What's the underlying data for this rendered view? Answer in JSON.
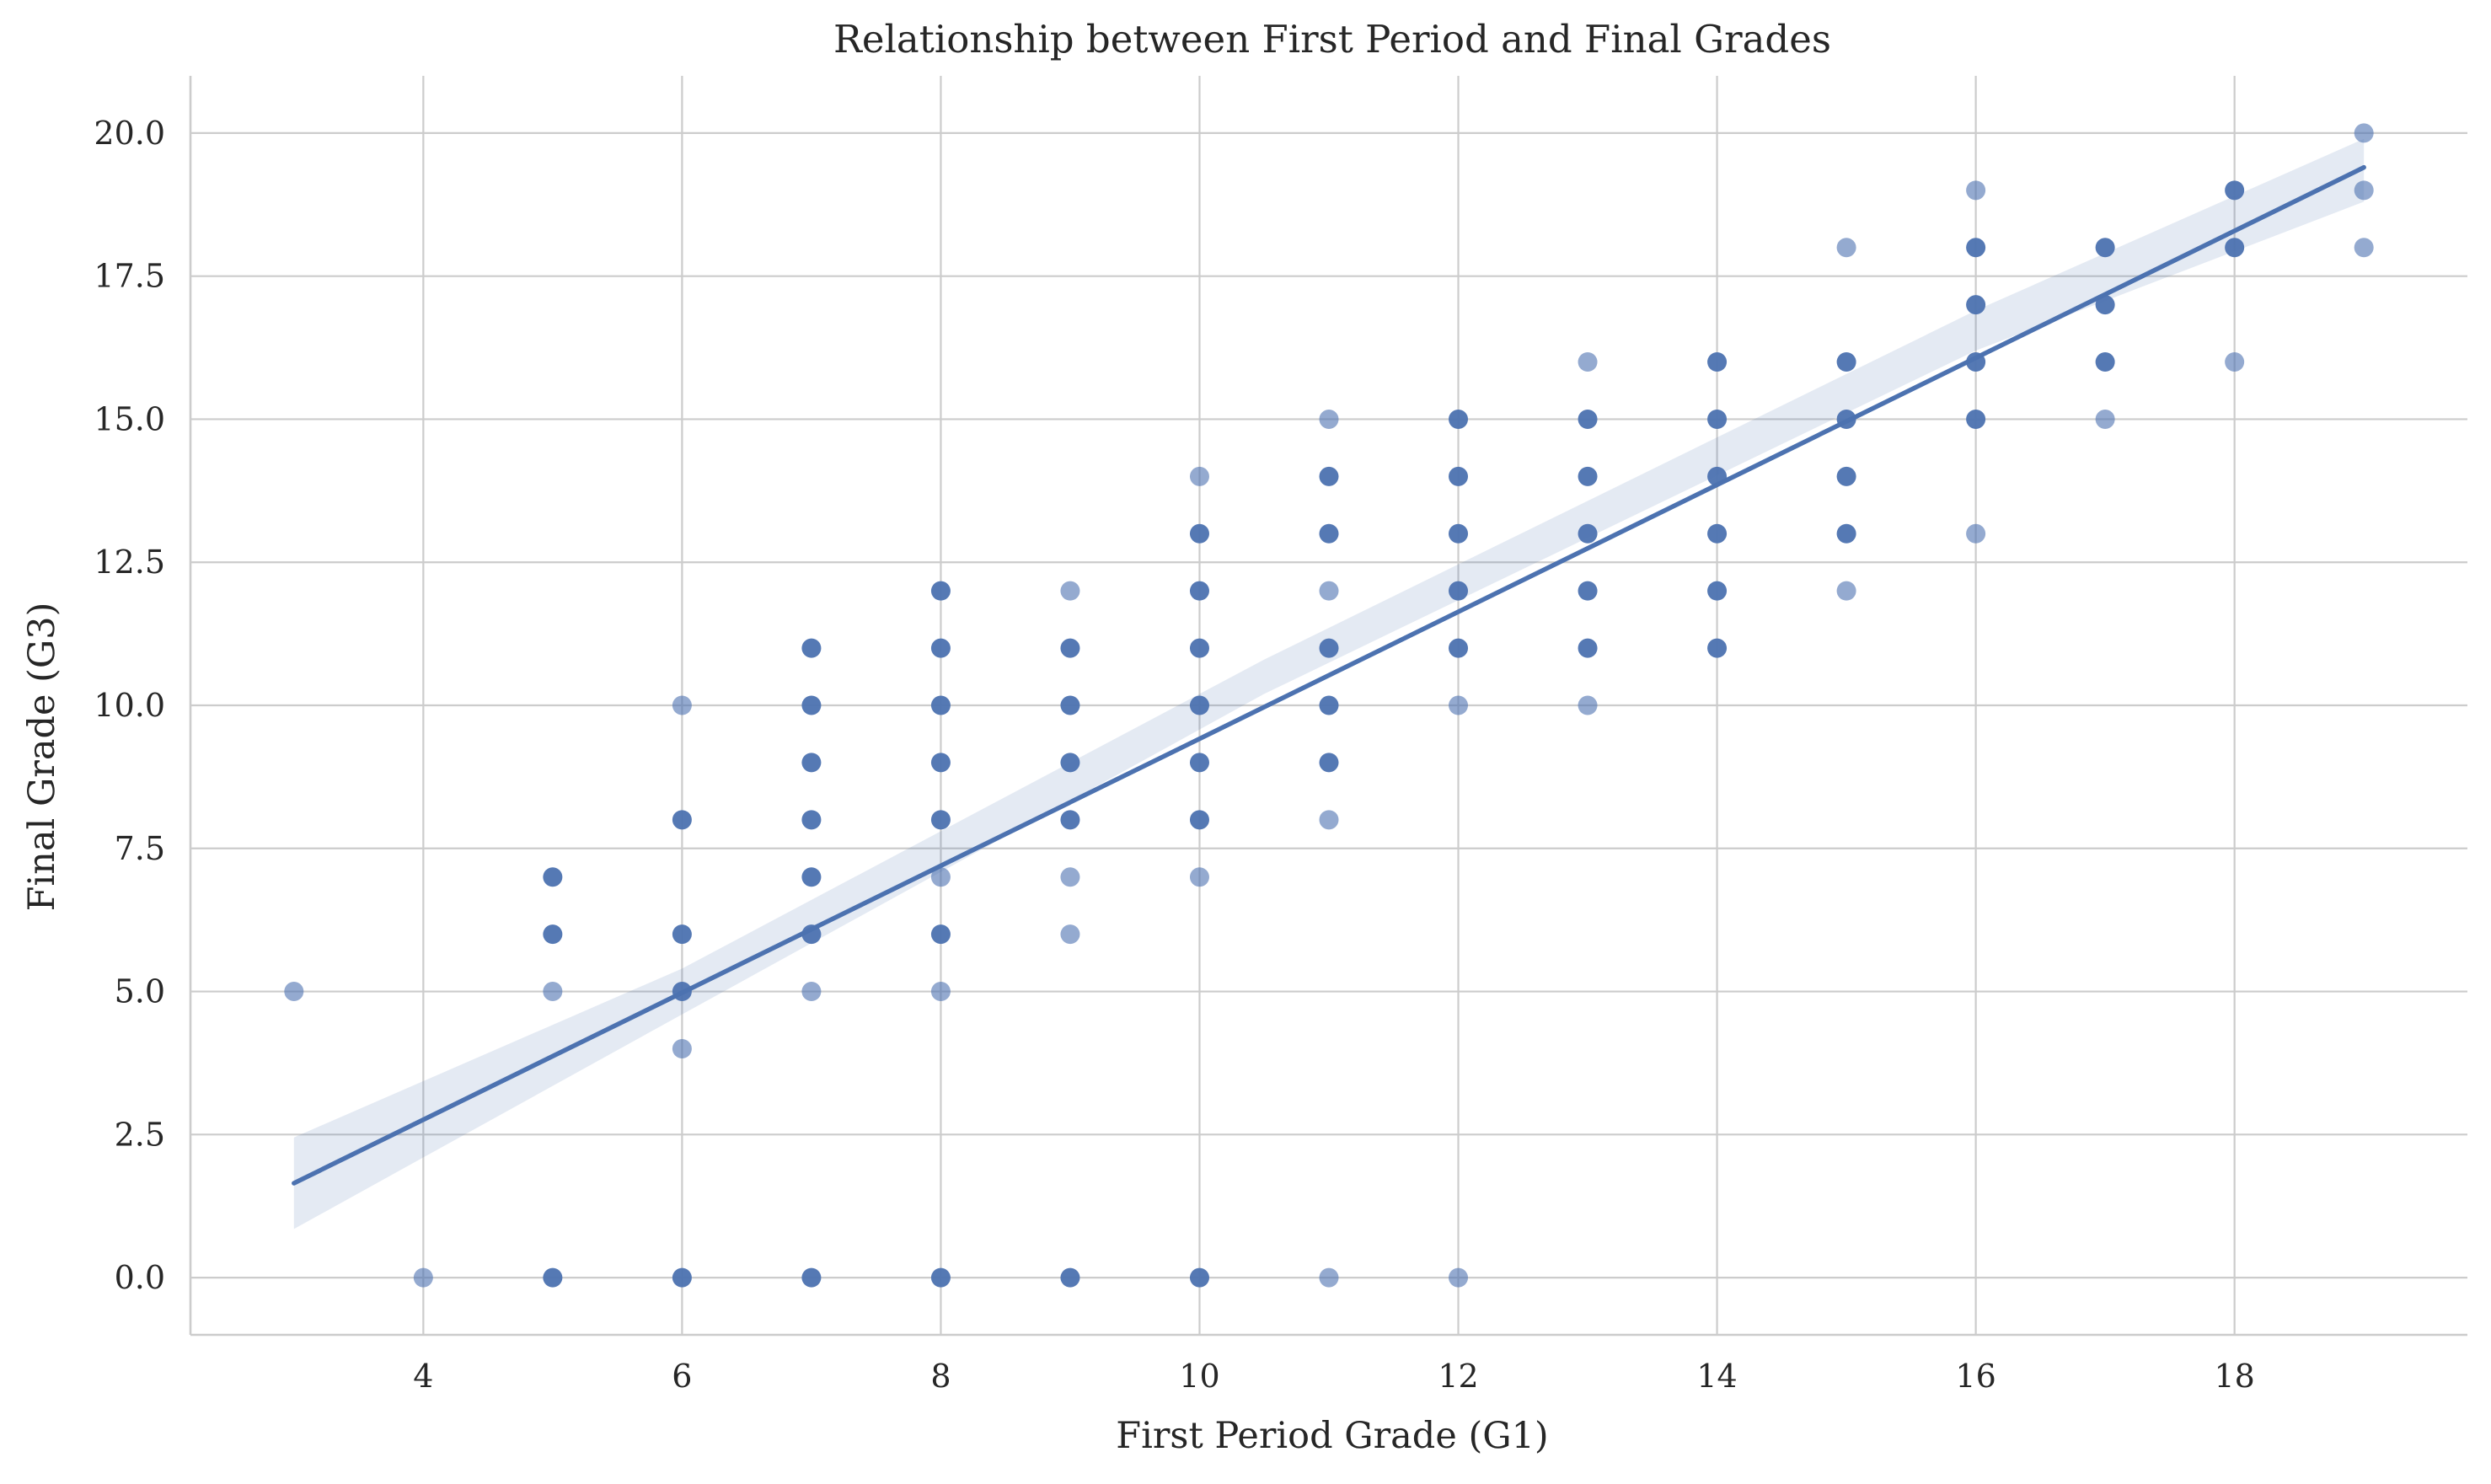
{
  "chart_data": {
    "type": "scatter",
    "title": "Relationship between First Period and Final Grades",
    "xlabel": "First Period Grade (G1)",
    "ylabel": "Final Grade (G3)",
    "xlim": [
      2.2,
      19.8
    ],
    "ylim": [
      -1,
      21
    ],
    "xticks": [
      4,
      6,
      8,
      10,
      12,
      14,
      16,
      18
    ],
    "yticks": [
      0.0,
      2.5,
      5.0,
      7.5,
      10.0,
      12.5,
      15.0,
      17.5,
      20.0
    ],
    "grid": true,
    "point_color": "#4c72b0",
    "line_color": "#4c72b0",
    "band_color": "#4c72b0",
    "regression": {
      "x_start": 3,
      "y_start": 1.65,
      "x_end": 19,
      "y_end": 19.4
    },
    "confidence_band": [
      {
        "x": 3,
        "lo": 0.85,
        "hi": 2.45
      },
      {
        "x": 6,
        "lo": 4.6,
        "hi": 5.4
      },
      {
        "x": 10.5,
        "lo": 10.2,
        "hi": 10.8
      },
      {
        "x": 16,
        "lo": 16.2,
        "hi": 16.9
      },
      {
        "x": 19,
        "lo": 18.8,
        "hi": 19.9
      }
    ],
    "points": [
      {
        "x": 3,
        "y": 5,
        "dense": false
      },
      {
        "x": 4,
        "y": 0,
        "dense": false
      },
      {
        "x": 5,
        "y": 0,
        "dense": true
      },
      {
        "x": 5,
        "y": 5,
        "dense": false
      },
      {
        "x": 5,
        "y": 6,
        "dense": true
      },
      {
        "x": 5,
        "y": 7,
        "dense": true
      },
      {
        "x": 6,
        "y": 0,
        "dense": true
      },
      {
        "x": 6,
        "y": 4,
        "dense": false
      },
      {
        "x": 6,
        "y": 5,
        "dense": true
      },
      {
        "x": 6,
        "y": 6,
        "dense": true
      },
      {
        "x": 6,
        "y": 8,
        "dense": true
      },
      {
        "x": 6,
        "y": 10,
        "dense": false
      },
      {
        "x": 7,
        "y": 0,
        "dense": true
      },
      {
        "x": 7,
        "y": 5,
        "dense": false
      },
      {
        "x": 7,
        "y": 6,
        "dense": true
      },
      {
        "x": 7,
        "y": 7,
        "dense": true
      },
      {
        "x": 7,
        "y": 8,
        "dense": true
      },
      {
        "x": 7,
        "y": 9,
        "dense": true
      },
      {
        "x": 7,
        "y": 10,
        "dense": true
      },
      {
        "x": 7,
        "y": 11,
        "dense": true
      },
      {
        "x": 8,
        "y": 0,
        "dense": true
      },
      {
        "x": 8,
        "y": 5,
        "dense": false
      },
      {
        "x": 8,
        "y": 6,
        "dense": true
      },
      {
        "x": 8,
        "y": 7,
        "dense": false
      },
      {
        "x": 8,
        "y": 8,
        "dense": true
      },
      {
        "x": 8,
        "y": 9,
        "dense": true
      },
      {
        "x": 8,
        "y": 10,
        "dense": true
      },
      {
        "x": 8,
        "y": 11,
        "dense": true
      },
      {
        "x": 8,
        "y": 12,
        "dense": true
      },
      {
        "x": 9,
        "y": 0,
        "dense": true
      },
      {
        "x": 9,
        "y": 6,
        "dense": false
      },
      {
        "x": 9,
        "y": 7,
        "dense": false
      },
      {
        "x": 9,
        "y": 8,
        "dense": true
      },
      {
        "x": 9,
        "y": 9,
        "dense": true
      },
      {
        "x": 9,
        "y": 10,
        "dense": true
      },
      {
        "x": 9,
        "y": 11,
        "dense": true
      },
      {
        "x": 9,
        "y": 12,
        "dense": false
      },
      {
        "x": 10,
        "y": 0,
        "dense": true
      },
      {
        "x": 10,
        "y": 7,
        "dense": false
      },
      {
        "x": 10,
        "y": 8,
        "dense": true
      },
      {
        "x": 10,
        "y": 9,
        "dense": true
      },
      {
        "x": 10,
        "y": 10,
        "dense": true
      },
      {
        "x": 10,
        "y": 11,
        "dense": true
      },
      {
        "x": 10,
        "y": 12,
        "dense": true
      },
      {
        "x": 10,
        "y": 13,
        "dense": true
      },
      {
        "x": 10,
        "y": 14,
        "dense": false
      },
      {
        "x": 11,
        "y": 0,
        "dense": false
      },
      {
        "x": 11,
        "y": 8,
        "dense": false
      },
      {
        "x": 11,
        "y": 9,
        "dense": true
      },
      {
        "x": 11,
        "y": 10,
        "dense": true
      },
      {
        "x": 11,
        "y": 11,
        "dense": true
      },
      {
        "x": 11,
        "y": 12,
        "dense": false
      },
      {
        "x": 11,
        "y": 13,
        "dense": true
      },
      {
        "x": 11,
        "y": 14,
        "dense": true
      },
      {
        "x": 11,
        "y": 15,
        "dense": false
      },
      {
        "x": 12,
        "y": 0,
        "dense": false
      },
      {
        "x": 12,
        "y": 10,
        "dense": false
      },
      {
        "x": 12,
        "y": 11,
        "dense": true
      },
      {
        "x": 12,
        "y": 12,
        "dense": true
      },
      {
        "x": 12,
        "y": 13,
        "dense": true
      },
      {
        "x": 12,
        "y": 14,
        "dense": true
      },
      {
        "x": 12,
        "y": 15,
        "dense": true
      },
      {
        "x": 13,
        "y": 10,
        "dense": false
      },
      {
        "x": 13,
        "y": 11,
        "dense": true
      },
      {
        "x": 13,
        "y": 12,
        "dense": true
      },
      {
        "x": 13,
        "y": 13,
        "dense": true
      },
      {
        "x": 13,
        "y": 14,
        "dense": true
      },
      {
        "x": 13,
        "y": 15,
        "dense": true
      },
      {
        "x": 13,
        "y": 16,
        "dense": false
      },
      {
        "x": 14,
        "y": 11,
        "dense": true
      },
      {
        "x": 14,
        "y": 12,
        "dense": true
      },
      {
        "x": 14,
        "y": 13,
        "dense": true
      },
      {
        "x": 14,
        "y": 14,
        "dense": true
      },
      {
        "x": 14,
        "y": 15,
        "dense": true
      },
      {
        "x": 14,
        "y": 16,
        "dense": true
      },
      {
        "x": 15,
        "y": 12,
        "dense": false
      },
      {
        "x": 15,
        "y": 13,
        "dense": true
      },
      {
        "x": 15,
        "y": 14,
        "dense": true
      },
      {
        "x": 15,
        "y": 15,
        "dense": true
      },
      {
        "x": 15,
        "y": 16,
        "dense": true
      },
      {
        "x": 15,
        "y": 18,
        "dense": false
      },
      {
        "x": 16,
        "y": 13,
        "dense": false
      },
      {
        "x": 16,
        "y": 15,
        "dense": true
      },
      {
        "x": 16,
        "y": 16,
        "dense": true
      },
      {
        "x": 16,
        "y": 17,
        "dense": true
      },
      {
        "x": 16,
        "y": 18,
        "dense": true
      },
      {
        "x": 16,
        "y": 19,
        "dense": false
      },
      {
        "x": 17,
        "y": 15,
        "dense": false
      },
      {
        "x": 17,
        "y": 16,
        "dense": true
      },
      {
        "x": 17,
        "y": 17,
        "dense": true
      },
      {
        "x": 17,
        "y": 18,
        "dense": true
      },
      {
        "x": 18,
        "y": 16,
        "dense": false
      },
      {
        "x": 18,
        "y": 18,
        "dense": true
      },
      {
        "x": 18,
        "y": 19,
        "dense": true
      },
      {
        "x": 19,
        "y": 18,
        "dense": false
      },
      {
        "x": 19,
        "y": 19,
        "dense": false
      },
      {
        "x": 19,
        "y": 20,
        "dense": false
      }
    ]
  }
}
